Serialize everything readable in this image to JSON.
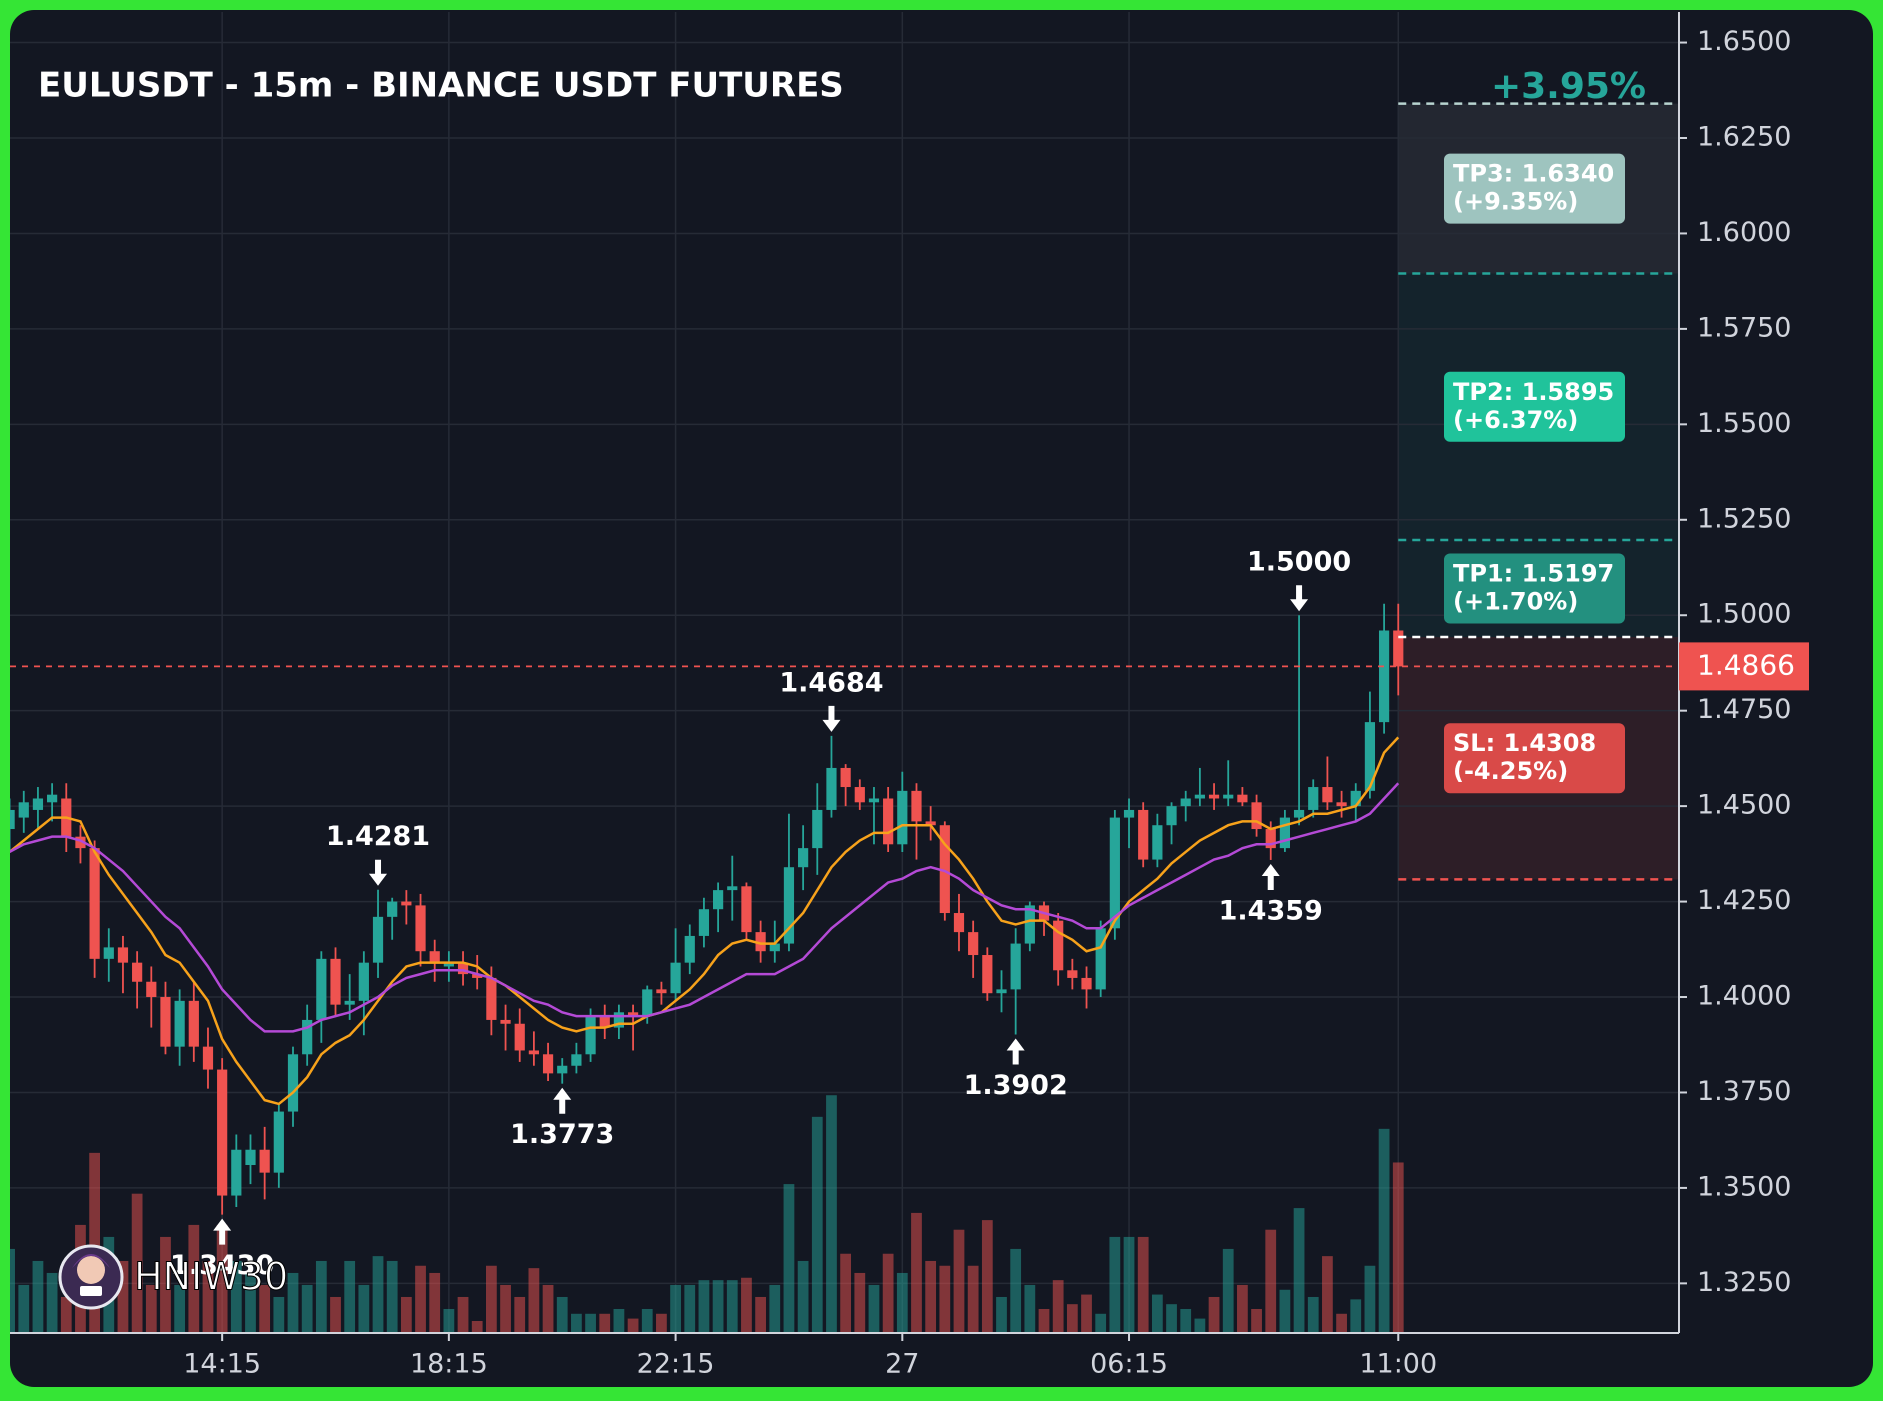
{
  "chart_data": {
    "type": "candlestick",
    "title": "EULUSDT - 15m - BINANCE USDT FUTURES",
    "change_label": "+3.95%",
    "watermark": "HNIW30",
    "categories": [
      null,
      null,
      null,
      null,
      null,
      null,
      null,
      null,
      null,
      null,
      null,
      null,
      null,
      null,
      null,
      "14:15",
      null,
      null,
      null,
      null,
      null,
      null,
      null,
      null,
      null,
      null,
      null,
      null,
      null,
      null,
      null,
      "18:15",
      null,
      null,
      null,
      null,
      null,
      null,
      null,
      null,
      null,
      null,
      null,
      null,
      null,
      null,
      null,
      "22:15",
      null,
      null,
      null,
      null,
      null,
      null,
      null,
      null,
      null,
      null,
      null,
      null,
      null,
      null,
      null,
      "27",
      null,
      null,
      null,
      null,
      null,
      null,
      null,
      null,
      null,
      null,
      null,
      null,
      null,
      null,
      null,
      "06:15",
      null,
      null,
      null,
      null,
      null,
      null,
      null,
      null,
      null,
      null,
      null,
      null,
      null,
      null,
      null,
      null,
      null,
      null,
      "11:00"
    ],
    "open": [
      1.444,
      1.447,
      1.449,
      1.451,
      1.452,
      1.442,
      1.439,
      1.41,
      1.413,
      1.409,
      1.404,
      1.4,
      1.387,
      1.399,
      1.387,
      1.381,
      1.348,
      1.356,
      1.36,
      1.354,
      1.37,
      1.385,
      1.394,
      1.41,
      1.398,
      1.399,
      1.409,
      1.421,
      1.425,
      1.424,
      1.412,
      1.408,
      1.409,
      1.406,
      1.405,
      1.394,
      1.393,
      1.386,
      1.385,
      1.38,
      1.382,
      1.385,
      1.395,
      1.392,
      1.396,
      1.395,
      1.402,
      1.401,
      1.409,
      1.416,
      1.423,
      1.428,
      1.429,
      1.417,
      1.412,
      1.414,
      1.434,
      1.439,
      1.449,
      1.46,
      1.455,
      1.451,
      1.452,
      1.44,
      1.454,
      1.446,
      1.445,
      1.422,
      1.417,
      1.411,
      1.401,
      1.402,
      1.414,
      1.424,
      1.42,
      1.407,
      1.405,
      1.402,
      1.418,
      1.447,
      1.449,
      1.436,
      1.445,
      1.45,
      1.452,
      1.453,
      1.452,
      1.453,
      1.451,
      1.444,
      1.439,
      1.447,
      1.449,
      1.455,
      1.451,
      1.45,
      1.454,
      1.472,
      1.496
    ],
    "high": [
      1.452,
      1.454,
      1.455,
      1.456,
      1.456,
      1.445,
      1.441,
      1.418,
      1.416,
      1.412,
      1.408,
      1.404,
      1.402,
      1.404,
      1.392,
      1.384,
      1.364,
      1.364,
      1.366,
      1.372,
      1.387,
      1.398,
      1.412,
      1.413,
      1.406,
      1.412,
      1.4281,
      1.426,
      1.428,
      1.427,
      1.415,
      1.412,
      1.412,
      1.411,
      1.408,
      1.398,
      1.397,
      1.391,
      1.388,
      1.384,
      1.388,
      1.397,
      1.398,
      1.398,
      1.398,
      1.403,
      1.404,
      1.418,
      1.419,
      1.426,
      1.43,
      1.437,
      1.43,
      1.42,
      1.42,
      1.448,
      1.445,
      1.456,
      1.4684,
      1.461,
      1.457,
      1.455,
      1.455,
      1.459,
      1.456,
      1.45,
      1.446,
      1.427,
      1.42,
      1.413,
      1.407,
      1.418,
      1.425,
      1.425,
      1.422,
      1.41,
      1.408,
      1.42,
      1.449,
      1.452,
      1.451,
      1.448,
      1.451,
      1.454,
      1.46,
      1.456,
      1.462,
      1.455,
      1.453,
      1.446,
      1.449,
      1.5,
      1.457,
      1.463,
      1.454,
      1.456,
      1.48,
      1.503,
      1.503
    ],
    "low": [
      1.438,
      1.443,
      1.444,
      1.446,
      1.438,
      1.435,
      1.405,
      1.404,
      1.401,
      1.397,
      1.392,
      1.385,
      1.382,
      1.383,
      1.376,
      1.343,
      1.345,
      1.351,
      1.347,
      1.35,
      1.366,
      1.382,
      1.388,
      1.395,
      1.394,
      1.39,
      1.405,
      1.415,
      1.419,
      1.408,
      1.404,
      1.404,
      1.403,
      1.402,
      1.39,
      1.386,
      1.383,
      1.382,
      1.378,
      1.3773,
      1.38,
      1.383,
      1.389,
      1.389,
      1.386,
      1.393,
      1.398,
      1.399,
      1.406,
      1.413,
      1.417,
      1.42,
      1.415,
      1.409,
      1.409,
      1.412,
      1.428,
      1.432,
      1.447,
      1.45,
      1.449,
      1.44,
      1.438,
      1.438,
      1.436,
      1.441,
      1.42,
      1.412,
      1.405,
      1.399,
      1.396,
      1.3902,
      1.412,
      1.416,
      1.403,
      1.402,
      1.397,
      1.4,
      1.415,
      1.439,
      1.434,
      1.434,
      1.44,
      1.446,
      1.45,
      1.449,
      1.45,
      1.45,
      1.442,
      1.4359,
      1.438,
      1.445,
      1.447,
      1.449,
      1.447,
      1.446,
      1.452,
      1.469,
      1.479
    ],
    "close": [
      1.449,
      1.451,
      1.452,
      1.453,
      1.442,
      1.439,
      1.41,
      1.413,
      1.409,
      1.404,
      1.4,
      1.387,
      1.399,
      1.387,
      1.381,
      1.348,
      1.36,
      1.36,
      1.354,
      1.37,
      1.385,
      1.394,
      1.41,
      1.398,
      1.399,
      1.409,
      1.421,
      1.425,
      1.424,
      1.412,
      1.409,
      1.409,
      1.406,
      1.405,
      1.394,
      1.393,
      1.386,
      1.385,
      1.38,
      1.382,
      1.385,
      1.395,
      1.392,
      1.396,
      1.395,
      1.402,
      1.401,
      1.409,
      1.416,
      1.423,
      1.428,
      1.429,
      1.417,
      1.412,
      1.414,
      1.434,
      1.439,
      1.449,
      1.46,
      1.455,
      1.451,
      1.452,
      1.44,
      1.454,
      1.446,
      1.445,
      1.422,
      1.417,
      1.411,
      1.401,
      1.402,
      1.414,
      1.424,
      1.42,
      1.407,
      1.405,
      1.402,
      1.418,
      1.447,
      1.449,
      1.436,
      1.445,
      1.45,
      1.452,
      1.453,
      1.452,
      1.453,
      1.451,
      1.444,
      1.439,
      1.447,
      1.449,
      1.455,
      1.451,
      1.45,
      1.454,
      1.472,
      1.496,
      1.4866
    ],
    "volume": [
      35,
      20,
      30,
      25,
      15,
      45,
      75,
      40,
      30,
      58,
      20,
      40,
      20,
      45,
      30,
      45,
      30,
      25,
      20,
      15,
      25,
      20,
      30,
      15,
      30,
      20,
      32,
      30,
      15,
      28,
      25,
      10,
      15,
      5,
      28,
      20,
      15,
      27,
      20,
      15,
      8,
      8,
      8,
      10,
      6,
      10,
      8,
      20,
      20,
      22,
      22,
      22,
      23,
      15,
      20,
      62,
      30,
      90,
      99,
      33,
      25,
      20,
      33,
      25,
      50,
      30,
      28,
      43,
      28,
      47,
      15,
      35,
      20,
      10,
      22,
      12,
      16,
      8,
      40,
      40,
      40,
      16,
      12,
      10,
      6,
      15,
      35,
      20,
      10,
      43,
      18,
      52,
      15,
      32,
      8,
      14,
      28,
      85,
      71
    ],
    "volume_ylim": [
      0,
      550
    ],
    "up_color": "#26a69a",
    "down_color": "#ef5350",
    "volume_colors": [
      "rgba(38,166,154,0.5)",
      "rgba(239,83,80,0.5)"
    ],
    "ma_series": [
      {
        "color": "#f7a21b",
        "values": [
          1.438,
          1.441,
          1.444,
          1.447,
          1.447,
          1.446,
          1.438,
          1.432,
          1.427,
          1.422,
          1.417,
          1.411,
          1.409,
          1.404,
          1.399,
          1.389,
          1.383,
          1.378,
          1.373,
          1.372,
          1.375,
          1.379,
          1.385,
          1.388,
          1.39,
          1.394,
          1.399,
          1.404,
          1.408,
          1.409,
          1.409,
          1.409,
          1.409,
          1.408,
          1.405,
          1.403,
          1.4,
          1.397,
          1.394,
          1.392,
          1.391,
          1.392,
          1.392,
          1.393,
          1.393,
          1.395,
          1.396,
          1.399,
          1.402,
          1.406,
          1.411,
          1.414,
          1.415,
          1.414,
          1.414,
          1.418,
          1.422,
          1.428,
          1.434,
          1.438,
          1.441,
          1.443,
          1.443,
          1.445,
          1.445,
          1.445,
          1.44,
          1.436,
          1.431,
          1.425,
          1.42,
          1.419,
          1.42,
          1.42,
          1.417,
          1.415,
          1.412,
          1.413,
          1.42,
          1.425,
          1.428,
          1.431,
          1.435,
          1.438,
          1.441,
          1.443,
          1.445,
          1.446,
          1.446,
          1.444,
          1.445,
          1.446,
          1.448,
          1.448,
          1.449,
          1.45,
          1.455,
          1.464,
          1.468
        ]
      },
      {
        "color": "#b44ad6",
        "values": [
          1.438,
          1.44,
          1.441,
          1.442,
          1.442,
          1.441,
          1.439,
          1.436,
          1.433,
          1.429,
          1.425,
          1.421,
          1.418,
          1.413,
          1.408,
          1.402,
          1.398,
          1.394,
          1.391,
          1.391,
          1.391,
          1.392,
          1.394,
          1.395,
          1.396,
          1.398,
          1.4,
          1.403,
          1.405,
          1.406,
          1.407,
          1.407,
          1.407,
          1.406,
          1.405,
          1.403,
          1.401,
          1.399,
          1.398,
          1.396,
          1.395,
          1.395,
          1.395,
          1.395,
          1.395,
          1.395,
          1.396,
          1.397,
          1.398,
          1.4,
          1.402,
          1.404,
          1.406,
          1.406,
          1.406,
          1.408,
          1.41,
          1.414,
          1.418,
          1.421,
          1.424,
          1.427,
          1.43,
          1.431,
          1.433,
          1.434,
          1.433,
          1.431,
          1.428,
          1.426,
          1.424,
          1.423,
          1.423,
          1.422,
          1.421,
          1.42,
          1.418,
          1.418,
          1.421,
          1.424,
          1.426,
          1.428,
          1.43,
          1.432,
          1.434,
          1.436,
          1.437,
          1.439,
          1.44,
          1.44,
          1.441,
          1.442,
          1.443,
          1.444,
          1.445,
          1.446,
          1.448,
          1.452,
          1.456
        ]
      }
    ],
    "annotations": [
      {
        "candle": 15,
        "side": "low",
        "label": "1.3430"
      },
      {
        "candle": 26,
        "side": "high",
        "label": "1.4281"
      },
      {
        "candle": 39,
        "side": "low",
        "label": "1.3773"
      },
      {
        "candle": 58,
        "side": "high",
        "label": "1.4684"
      },
      {
        "candle": 71,
        "side": "low",
        "label": "1.3902"
      },
      {
        "candle": 89,
        "side": "low",
        "label": "1.4359"
      },
      {
        "candle": 91,
        "side": "high",
        "label": "1.5000"
      }
    ],
    "entry": 1.4943,
    "entry_color": "#ffffff",
    "levels": [
      {
        "value": 1.634,
        "label": "TP3: 1.6340",
        "pct": "(+9.35%)",
        "color": "#9ec4bf",
        "line": "#b8d4d0",
        "zone": "rgba(255,255,255,0.07)"
      },
      {
        "value": 1.5895,
        "label": "TP2: 1.5895",
        "pct": "(+6.37%)",
        "color": "#20c39b",
        "line": "#26a69a",
        "zone": "rgba(38,166,154,0.09)"
      },
      {
        "value": 1.5197,
        "label": "TP1: 1.5197",
        "pct": "(+1.70%)",
        "color": "#23907f",
        "line": "#26a69a",
        "zone": "rgba(38,166,154,0.09)"
      },
      {
        "value": 1.4308,
        "label": "SL: 1.4308",
        "pct": "(-4.25%)",
        "color": "#d94a48",
        "line": "#ef5350",
        "zone": "rgba(239,83,80,0.12)"
      }
    ],
    "ylim": [
      1.312,
      1.658
    ],
    "yticks": [
      {
        "value": 1.325,
        "label": "1.3250"
      },
      {
        "value": 1.35,
        "label": "1.3500"
      },
      {
        "value": 1.375,
        "label": "1.3750"
      },
      {
        "value": 1.4,
        "label": "1.4000"
      },
      {
        "value": 1.425,
        "label": "1.4250"
      },
      {
        "value": 1.45,
        "label": "1.4500"
      },
      {
        "value": 1.475,
        "label": "1.4750"
      },
      {
        "value": 1.5,
        "label": "1.5000"
      },
      {
        "value": 1.525,
        "label": "1.5250"
      },
      {
        "value": 1.55,
        "label": "1.5500"
      },
      {
        "value": 1.575,
        "label": "1.5750"
      },
      {
        "value": 1.6,
        "label": "1.6000"
      },
      {
        "value": 1.625,
        "label": "1.6250"
      },
      {
        "value": 1.65,
        "label": "1.6500"
      }
    ],
    "grid": true
  }
}
